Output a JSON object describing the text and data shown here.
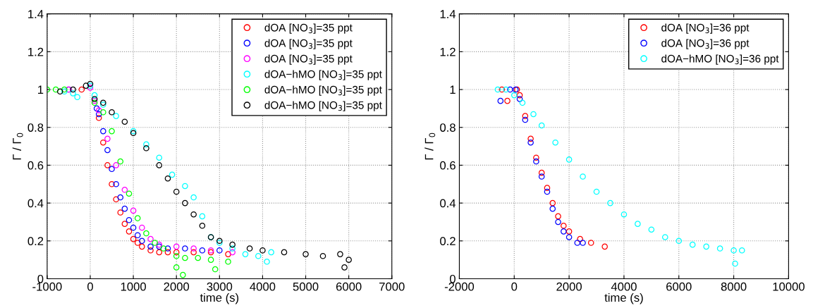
{
  "chart_data": [
    {
      "type": "scatter",
      "xlabel": "time (s)",
      "ylabel": "Γ / Γ$_{0}$",
      "xlim": [
        -1000,
        7000
      ],
      "xticks": [
        -1000,
        0,
        1000,
        2000,
        3000,
        4000,
        5000,
        6000,
        7000
      ],
      "ylim": [
        0,
        1.4
      ],
      "yticks": [
        0,
        0.2,
        0.4,
        0.6,
        0.8,
        1,
        1.2,
        1.4
      ],
      "grid": true,
      "legend": "top right",
      "marker": "circle",
      "series": [
        {
          "name": "dOA [NO$_{3}$]=35 ppt",
          "color": "#ff0000",
          "x": [
            -200,
            200,
            300,
            400,
            500,
            600,
            700,
            800,
            900,
            1000,
            1100,
            1200,
            1400,
            1600,
            1800,
            2000,
            2400,
            2800,
            3200
          ],
          "values": [
            1.0,
            0.85,
            0.72,
            0.6,
            0.5,
            0.42,
            0.35,
            0.29,
            0.25,
            0.21,
            0.19,
            0.17,
            0.15,
            0.14,
            0.14,
            0.14,
            0.14,
            0.14,
            0.13
          ]
        },
        {
          "name": "dOA [NO$_{3}$]=35 ppt",
          "color": "#0000ff",
          "x": [
            -500,
            150,
            200,
            300,
            400,
            500,
            600,
            700,
            800,
            900,
            1000,
            1100,
            1200,
            1400,
            1600,
            1800,
            2200,
            2600,
            3000
          ],
          "values": [
            1.0,
            0.9,
            0.87,
            0.78,
            0.68,
            0.58,
            0.5,
            0.43,
            0.37,
            0.31,
            0.27,
            0.23,
            0.2,
            0.17,
            0.17,
            0.16,
            0.16,
            0.15,
            0.15
          ]
        },
        {
          "name": "dOA [NO$_{3}$]=35 ppt",
          "color": "#ff00ff",
          "x": [
            -500,
            0,
            100,
            200,
            400,
            600,
            800,
            1000,
            1200,
            1400,
            1600,
            2000,
            2400,
            2800,
            3300
          ],
          "values": [
            1.0,
            1.01,
            0.94,
            0.89,
            0.74,
            0.6,
            0.47,
            0.36,
            0.27,
            0.21,
            0.18,
            0.17,
            0.16,
            0.15,
            0.14
          ]
        },
        {
          "name": "dOA−hMO [NO$_{3}$]=35 ppt",
          "color": "#00ffff",
          "x": [
            -600,
            -400,
            -300,
            0,
            100,
            300,
            600,
            1000,
            1300,
            1600,
            1900,
            2200,
            2400,
            2600,
            2800,
            3000,
            3300,
            3600,
            3900,
            4100,
            4200
          ],
          "values": [
            0.99,
            0.98,
            0.96,
            1.02,
            0.97,
            0.92,
            0.86,
            0.78,
            0.71,
            0.64,
            0.55,
            0.49,
            0.43,
            0.33,
            0.22,
            0.19,
            0.16,
            0.13,
            0.12,
            0.09,
            0.14
          ]
        },
        {
          "name": "dOA−hMO [NO$_{3}$]=35 ppt",
          "color": "#00ff00",
          "x": [
            -1000,
            -800,
            -600,
            100,
            300,
            500,
            700,
            900,
            1100,
            1300,
            1500,
            1700,
            2000,
            2000,
            2150,
            2200,
            2500,
            2800,
            2900,
            3200
          ],
          "values": [
            1.0,
            1.0,
            1.0,
            0.93,
            0.88,
            0.78,
            0.62,
            0.45,
            0.32,
            0.24,
            0.19,
            0.16,
            0.12,
            0.06,
            0.02,
            0.11,
            0.11,
            0.1,
            0.05,
            0.09
          ]
        },
        {
          "name": "dOA−hMO [NO$_{3}$]=35 ppt",
          "color": "#000000",
          "x": [
            -700,
            -400,
            -100,
            0,
            100,
            300,
            500,
            800,
            1000,
            1300,
            1600,
            1800,
            2000,
            2200,
            2400,
            2600,
            2800,
            3000,
            3300,
            3700,
            4000,
            4500,
            5000,
            5400,
            5800,
            5900,
            6000
          ],
          "values": [
            0.99,
            1.0,
            1.02,
            1.03,
            0.95,
            0.93,
            0.88,
            0.83,
            0.77,
            0.69,
            0.6,
            0.53,
            0.46,
            0.4,
            0.34,
            0.28,
            0.22,
            0.2,
            0.18,
            0.16,
            0.15,
            0.14,
            0.13,
            0.12,
            0.13,
            0.06,
            0.1
          ]
        }
      ]
    },
    {
      "type": "scatter",
      "xlabel": "time (s)",
      "ylabel": "Γ / Γ$_{0}$",
      "xlim": [
        -2000,
        10000
      ],
      "xticks": [
        -2000,
        0,
        2000,
        4000,
        6000,
        8000,
        10000
      ],
      "ylim": [
        0,
        1.4
      ],
      "yticks": [
        0,
        0.2,
        0.4,
        0.6,
        0.8,
        1,
        1.2,
        1.4
      ],
      "grid": true,
      "legend": "top right",
      "marker": "circle",
      "series": [
        {
          "name": "dOA [NO$_{3}$]=36 ppt",
          "color": "#ff0000",
          "x": [
            -450,
            -250,
            100,
            200,
            400,
            600,
            800,
            1000,
            1200,
            1400,
            1600,
            1800,
            2000,
            2400,
            2800,
            3300
          ],
          "values": [
            1.0,
            0.94,
            1.0,
            0.97,
            0.86,
            0.74,
            0.64,
            0.56,
            0.48,
            0.4,
            0.33,
            0.28,
            0.25,
            0.21,
            0.19,
            0.17
          ]
        },
        {
          "name": "dOA [NO$_{3}$]=36 ppt",
          "color": "#0000ff",
          "x": [
            -150,
            -500,
            50,
            200,
            400,
            600,
            800,
            1000,
            1200,
            1400,
            1600,
            1800,
            2000,
            2300,
            2500
          ],
          "values": [
            1.0,
            0.94,
            1.0,
            0.95,
            0.84,
            0.72,
            0.62,
            0.54,
            0.46,
            0.37,
            0.3,
            0.25,
            0.22,
            0.19,
            0.19
          ]
        },
        {
          "name": "dOA−hMO [NO$_{3}$]=36 ppt",
          "color": "#00ffff",
          "x": [
            -600,
            -300,
            0,
            300,
            700,
            1000,
            1500,
            2000,
            2500,
            3000,
            3500,
            4000,
            4500,
            5000,
            5500,
            6000,
            6500,
            7000,
            7500,
            8000,
            8050,
            8300
          ],
          "values": [
            1.0,
            1.0,
            0.97,
            0.93,
            0.87,
            0.81,
            0.72,
            0.63,
            0.54,
            0.46,
            0.4,
            0.34,
            0.29,
            0.26,
            0.22,
            0.2,
            0.18,
            0.17,
            0.16,
            0.15,
            0.08,
            0.15
          ]
        }
      ]
    }
  ]
}
